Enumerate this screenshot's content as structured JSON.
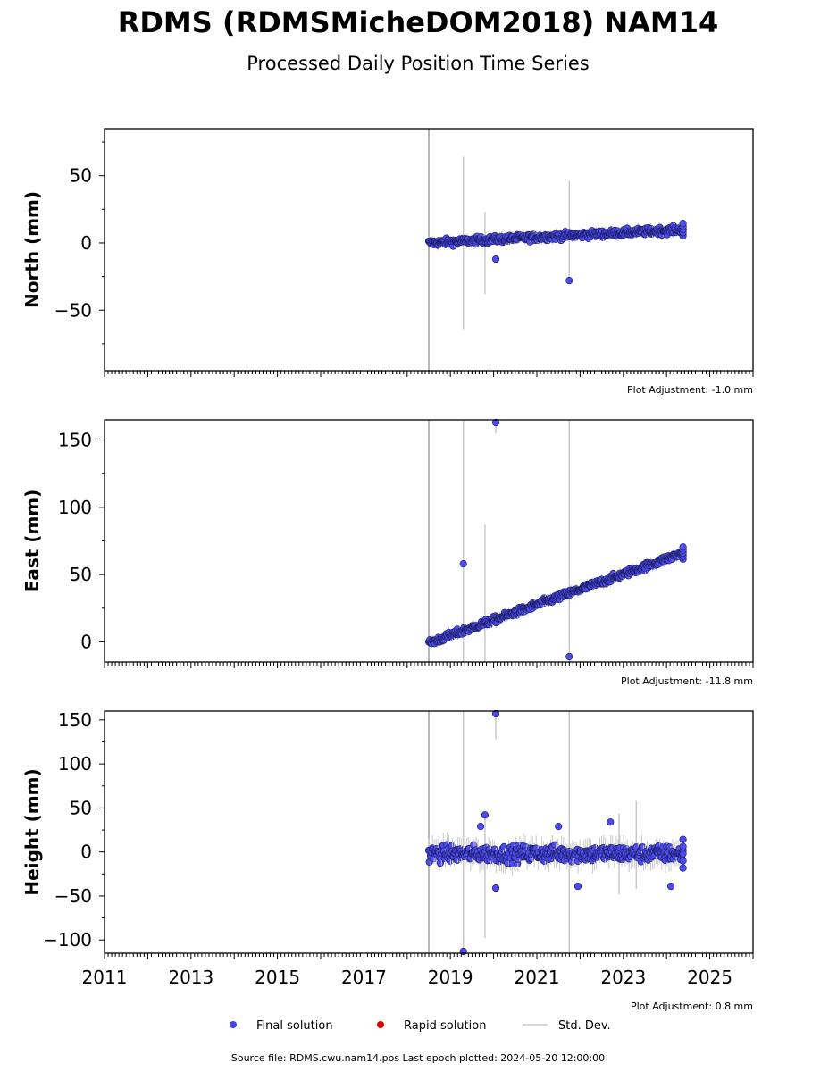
{
  "title": "RDMS (RDMSMicheDOM2018) NAM14",
  "subtitle": "Processed Daily Position Time Series",
  "footer": "Source file: RDMS.cwu.nam14.pos  Last epoch plotted: 2024-05-20 12:00:00",
  "legend": {
    "items": [
      {
        "label": "Final solution",
        "color": "#4444ee",
        "kind": "dot"
      },
      {
        "label": "Rapid solution",
        "color": "#dd0000",
        "kind": "dot"
      },
      {
        "label": "Std. Dev.",
        "color": "#cccccc",
        "kind": "line"
      }
    ]
  },
  "colors": {
    "final": "#4b4bf0",
    "final_edge": "#1a1a55",
    "stddev": "#c8c8c8",
    "start_line": "#a0a0a0"
  },
  "chart_data": [
    {
      "type": "scatter",
      "panel": "north",
      "ylabel": "North (mm)",
      "xlim": [
        2011,
        2026
      ],
      "ylim": [
        -95,
        85
      ],
      "yticks": [
        {
          "value": -50,
          "label": "−50"
        },
        {
          "value": 0,
          "label": "0"
        },
        {
          "value": 50,
          "label": "50"
        }
      ],
      "start_epoch": 2018.5,
      "adjustment": "Plot Adjustment: -1.0 mm",
      "trend": {
        "start": 0,
        "end": 10,
        "scatter": 2.5
      },
      "outliers": [
        [
          2020.05,
          -12
        ],
        [
          2021.75,
          -28
        ]
      ],
      "error_bars": [
        [
          2019.3,
          -64,
          64
        ],
        [
          2019.8,
          -38,
          23
        ],
        [
          2021.75,
          -28,
          46
        ]
      ]
    },
    {
      "type": "scatter",
      "panel": "east",
      "ylabel": "East (mm)",
      "xlim": [
        2011,
        2026
      ],
      "ylim": [
        -15,
        165
      ],
      "yticks": [
        {
          "value": 0,
          "label": "0"
        },
        {
          "value": 50,
          "label": "50"
        },
        {
          "value": 100,
          "label": "100"
        },
        {
          "value": 150,
          "label": "150"
        }
      ],
      "start_epoch": 2018.5,
      "adjustment": "Plot Adjustment: -11.8 mm",
      "trend": {
        "start": -1,
        "end": 66,
        "scatter": 2.5
      },
      "outliers": [
        [
          2019.3,
          58
        ],
        [
          2020.05,
          163
        ],
        [
          2021.75,
          -11
        ]
      ],
      "error_bars": [
        [
          2019.3,
          -15,
          165
        ],
        [
          2019.8,
          -15,
          87
        ],
        [
          2021.75,
          -15,
          165
        ],
        [
          2020.05,
          155,
          165
        ]
      ]
    },
    {
      "type": "scatter",
      "panel": "height",
      "ylabel": "Height (mm)",
      "xlim": [
        2011,
        2026
      ],
      "ylim": [
        -115,
        160
      ],
      "yticks": [
        {
          "value": -100,
          "label": "−100"
        },
        {
          "value": -50,
          "label": "−50"
        },
        {
          "value": 0,
          "label": "0"
        },
        {
          "value": 50,
          "label": "50"
        },
        {
          "value": 100,
          "label": "100"
        },
        {
          "value": 150,
          "label": "150"
        }
      ],
      "xticks": [
        {
          "value": 2011,
          "label": "2011"
        },
        {
          "value": 2013,
          "label": "2013"
        },
        {
          "value": 2015,
          "label": "2015"
        },
        {
          "value": 2017,
          "label": "2017"
        },
        {
          "value": 2019,
          "label": "2019"
        },
        {
          "value": 2021,
          "label": "2021"
        },
        {
          "value": 2023,
          "label": "2023"
        },
        {
          "value": 2025,
          "label": "2025"
        }
      ],
      "start_epoch": 2018.5,
      "adjustment": "Plot Adjustment: 0.8 mm",
      "trend": {
        "start": -2,
        "end": -2,
        "scatter": 9
      },
      "outliers": [
        [
          2019.3,
          -113
        ],
        [
          2019.8,
          42
        ],
        [
          2020.05,
          157
        ],
        [
          2020.05,
          -41
        ],
        [
          2021.95,
          -39
        ],
        [
          2024.1,
          -39
        ],
        [
          2022.7,
          34
        ],
        [
          2021.5,
          29
        ],
        [
          2019.7,
          29
        ]
      ],
      "error_bars": [
        [
          2019.3,
          -115,
          160
        ],
        [
          2019.8,
          -98,
          42
        ],
        [
          2021.75,
          -115,
          160
        ],
        [
          2020.05,
          128,
          160
        ],
        [
          2022.9,
          -48,
          44
        ],
        [
          2023.3,
          -42,
          58
        ]
      ]
    }
  ]
}
